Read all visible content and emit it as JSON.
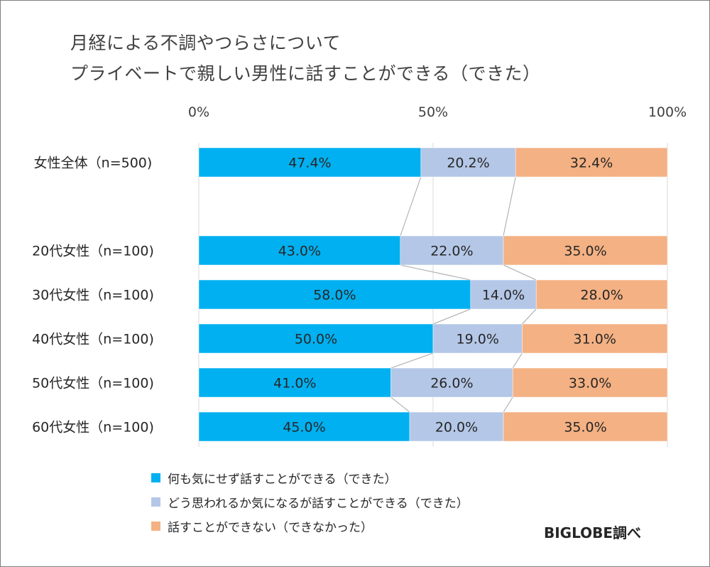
{
  "chart_data": {
    "type": "bar",
    "orientation": "horizontal",
    "stacked": "100%",
    "title": [
      "月経による不調やつらさについて",
      "プライベートで親しい男性に話すことができる（できた）"
    ],
    "x_ticks": [
      "0%",
      "50%",
      "100%"
    ],
    "xlim": [
      0,
      100
    ],
    "categories": [
      "女性全体（n=500)",
      "20代女性（n=100)",
      "30代女性（n=100)",
      "40代女性（n=100)",
      "50代女性（n=100)",
      "60代女性（n=100)"
    ],
    "series": [
      {
        "name": "何も気にせず話すことができる（できた）",
        "color": "#00b0f0",
        "values": [
          47.4,
          43.0,
          58.0,
          50.0,
          41.0,
          45.0
        ],
        "labels": [
          "47.4%",
          "43.0%",
          "58.0%",
          "50.0%",
          "41.0%",
          "45.0%"
        ]
      },
      {
        "name": "どう思われるか気になるが話すことができる（できた）",
        "color": "#b4c7e7",
        "values": [
          20.2,
          22.0,
          14.0,
          19.0,
          26.0,
          20.0
        ],
        "labels": [
          "20.2%",
          "22.0%",
          "14.0%",
          "19.0%",
          "26.0%",
          "20.0%"
        ]
      },
      {
        "name": "話すことができない（できなかった）",
        "color": "#f4b183",
        "values": [
          32.4,
          35.0,
          28.0,
          31.0,
          33.0,
          35.0
        ],
        "labels": [
          "32.4%",
          "35.0%",
          "28.0%",
          "31.0%",
          "33.0%",
          "35.0%"
        ]
      }
    ],
    "grid": true,
    "series_lines": true,
    "legend_position": "bottom-left"
  },
  "source": "BIGLOBE調べ"
}
